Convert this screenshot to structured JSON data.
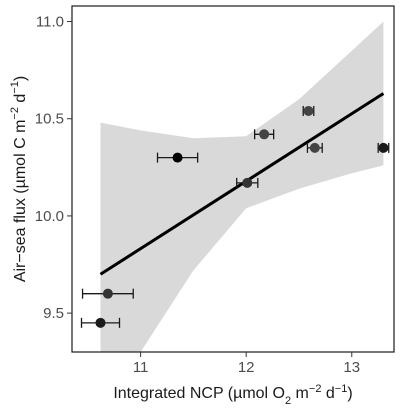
{
  "chart_data": {
    "type": "scatter",
    "xlabel_parts": [
      {
        "text": "Integrated NCP (µmol O",
        "style": "normal"
      },
      {
        "text": "2",
        "style": "sub"
      },
      {
        "text": " m",
        "style": "normal"
      },
      {
        "text": "−2",
        "style": "sup"
      },
      {
        "text": " d",
        "style": "normal"
      },
      {
        "text": "−1",
        "style": "sup"
      },
      {
        "text": ")",
        "style": "normal"
      }
    ],
    "ylabel_parts": [
      {
        "text": "Air−sea flux (µmol C m",
        "style": "normal"
      },
      {
        "text": "−2",
        "style": "sup"
      },
      {
        "text": " d",
        "style": "normal"
      },
      {
        "text": "−1",
        "style": "sup"
      },
      {
        "text": ")",
        "style": "normal"
      }
    ],
    "xlim": [
      10.35,
      13.4
    ],
    "ylim": [
      9.3,
      11.08
    ],
    "x_ticks": [
      11,
      12,
      13
    ],
    "y_ticks": [
      9.5,
      10.0,
      10.5,
      11.0
    ],
    "x_tick_labels": [
      "11",
      "12",
      "13"
    ],
    "y_tick_labels": [
      "9.5",
      "10.0",
      "10.5",
      "11.0"
    ],
    "grid": false,
    "legend": "none",
    "points": [
      {
        "x": 10.62,
        "y": 9.45,
        "xerr": 0.18,
        "color": "#1a1a1a"
      },
      {
        "x": 10.69,
        "y": 9.6,
        "xerr": 0.24,
        "color": "#333333"
      },
      {
        "x": 11.35,
        "y": 10.3,
        "xerr": 0.19,
        "color": "#000000"
      },
      {
        "x": 12.01,
        "y": 10.17,
        "xerr": 0.1,
        "color": "#333333"
      },
      {
        "x": 12.17,
        "y": 10.42,
        "xerr": 0.09,
        "color": "#444444"
      },
      {
        "x": 12.59,
        "y": 10.54,
        "xerr": 0.05,
        "color": "#444444"
      },
      {
        "x": 12.65,
        "y": 10.35,
        "xerr": 0.07,
        "color": "#444444"
      },
      {
        "x": 13.3,
        "y": 10.35,
        "xerr": 0.05,
        "color": "#1a1a1a"
      }
    ],
    "fit_line": {
      "x": [
        10.62,
        13.3
      ],
      "y": [
        9.7,
        10.63
      ],
      "color": "#000000"
    },
    "confidence_band": {
      "color": "#d9d9d9",
      "x": [
        10.62,
        11.0,
        11.5,
        12.0,
        12.5,
        13.0,
        13.3
      ],
      "upper": [
        10.48,
        10.44,
        10.4,
        10.41,
        10.6,
        10.85,
        11.0
      ],
      "lower": [
        8.92,
        9.3,
        9.72,
        10.04,
        10.14,
        10.22,
        10.26
      ]
    }
  }
}
